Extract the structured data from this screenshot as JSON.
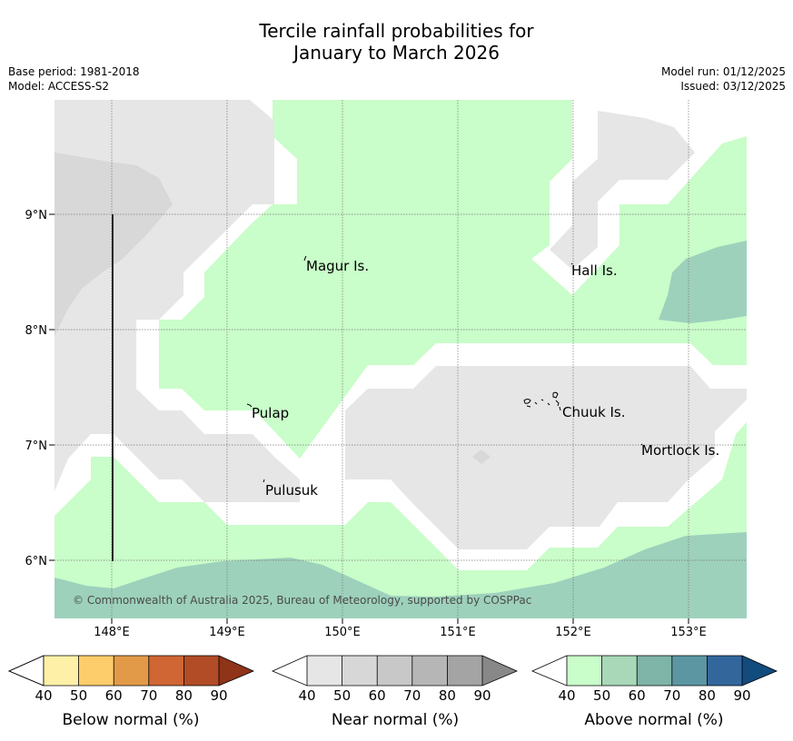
{
  "title_line1": "Tercile rainfall probabilities for",
  "title_line2": "January to March 2026",
  "meta": {
    "base_period": "Base period: 1981-2018",
    "model": "Model: ACCESS-S2",
    "model_run": "Model run: 01/12/2025",
    "issued": "Issued: 03/12/2025"
  },
  "map": {
    "lat_labels": [
      "9°N",
      "8°N",
      "7°N",
      "6°N"
    ],
    "lon_labels": [
      "148°E",
      "149°E",
      "150°E",
      "151°E",
      "152°E",
      "153°E"
    ],
    "places": [
      "Magur Is.",
      "Hall Is.",
      "Pulap",
      "Chuuk Is.",
      "Mortlock Is.",
      "Pulusuk"
    ],
    "copyright": "© Commonwealth of Australia 2025, Bureau of Meteorology, supported by COSPPac"
  },
  "legends": [
    {
      "label": "Below normal (%)",
      "ticks": [
        "40",
        "50",
        "60",
        "70",
        "80",
        "90"
      ],
      "colors": [
        "#fff0a8",
        "#fdcd6b",
        "#e39a48",
        "#cf6633",
        "#b14c26",
        "#8f3319"
      ]
    },
    {
      "label": "Near normal (%)",
      "ticks": [
        "40",
        "50",
        "60",
        "70",
        "80",
        "90"
      ],
      "colors": [
        "#e6e6e6",
        "#d7d7d7",
        "#c8c8c8",
        "#b6b6b6",
        "#a4a4a4",
        "#888888"
      ]
    },
    {
      "label": "Above normal (%)",
      "ticks": [
        "40",
        "50",
        "60",
        "70",
        "80",
        "90"
      ],
      "colors": [
        "#c9fdc9",
        "#a8d8b7",
        "#7fb4a8",
        "#5c96a3",
        "#33679c",
        "#124b7e"
      ]
    }
  ],
  "colors": {
    "near_40": "#e6e6e6",
    "near_50": "#d8d8d8",
    "above_40": "#c9fdc9",
    "above_50": "#9dd1bc"
  }
}
